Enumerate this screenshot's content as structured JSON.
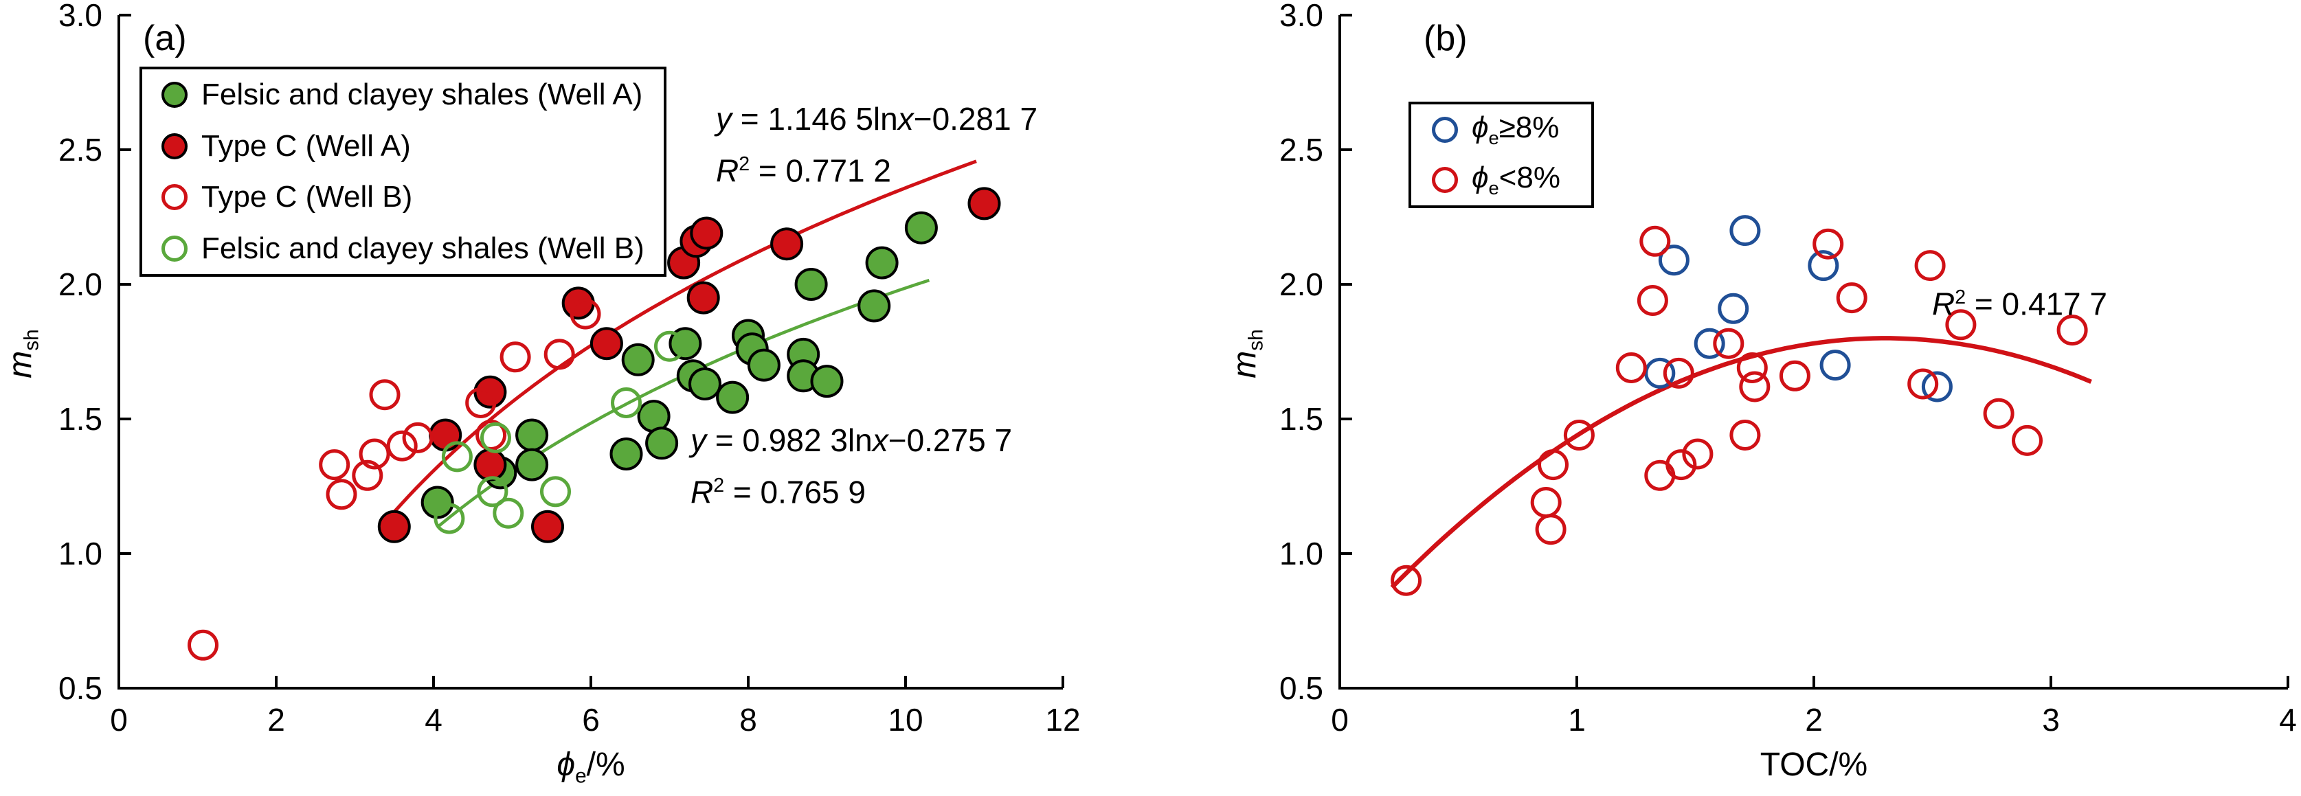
{
  "chart_data": [
    {
      "type": "scatter",
      "panel_label": "(a)",
      "xlabel": {
        "sym": "ϕ",
        "sub": "e",
        "rest": "/%"
      },
      "ylabel": {
        "sym": "m",
        "sub": "sh"
      },
      "xlim": [
        0,
        12
      ],
      "ylim": [
        0.5,
        3.0
      ],
      "xticks": [
        "0",
        "2",
        "4",
        "6",
        "8",
        "10",
        "12"
      ],
      "yticks": [
        "0.5",
        "1.0",
        "1.5",
        "2.0",
        "2.5",
        "3.0"
      ],
      "grid": false,
      "legend_position": "upper-left",
      "legend": [
        {
          "label": "Felsic and clayey shales (Well A)",
          "marker": "filled",
          "color": "#5AA83C"
        },
        {
          "label": "Type C (Well A)",
          "marker": "filled",
          "color": "#D01116"
        },
        {
          "label": "Type C (Well B)",
          "marker": "open",
          "color": "#D01116"
        },
        {
          "label": "Felsic and clayey shales (Well B)",
          "marker": "open",
          "color": "#5AA83C"
        }
      ],
      "series": [
        {
          "name": "Felsic and clayey shales (Well A)",
          "marker": "filled",
          "color": "#5AA83C",
          "points": [
            [
              4.05,
              1.19
            ],
            [
              4.85,
              1.3
            ],
            [
              5.25,
              1.44
            ],
            [
              5.25,
              1.33
            ],
            [
              6.45,
              1.37
            ],
            [
              6.6,
              1.72
            ],
            [
              6.8,
              1.51
            ],
            [
              6.9,
              1.41
            ],
            [
              7.2,
              1.78
            ],
            [
              7.3,
              1.66
            ],
            [
              7.45,
              1.63
            ],
            [
              7.8,
              1.58
            ],
            [
              8.0,
              1.81
            ],
            [
              8.05,
              1.76
            ],
            [
              8.2,
              1.7
            ],
            [
              8.7,
              1.74
            ],
            [
              8.7,
              1.66
            ],
            [
              8.8,
              2.0
            ],
            [
              9.0,
              1.64
            ],
            [
              9.6,
              1.92
            ],
            [
              9.7,
              2.08
            ],
            [
              10.2,
              2.21
            ]
          ]
        },
        {
          "name": "Type C (Well A)",
          "marker": "filled",
          "color": "#D01116",
          "points": [
            [
              3.5,
              1.1
            ],
            [
              4.15,
              1.44
            ],
            [
              4.72,
              1.6
            ],
            [
              4.72,
              1.33
            ],
            [
              5.45,
              1.1
            ],
            [
              5.84,
              1.93
            ],
            [
              6.2,
              1.78
            ],
            [
              7.18,
              2.08
            ],
            [
              7.34,
              2.16
            ],
            [
              7.47,
              2.19
            ],
            [
              7.43,
              1.95
            ],
            [
              8.49,
              2.15
            ],
            [
              11.0,
              2.3
            ]
          ]
        },
        {
          "name": "Type C (Well B)",
          "marker": "open",
          "color": "#D01116",
          "points": [
            [
              1.07,
              0.66
            ],
            [
              2.74,
              1.33
            ],
            [
              2.83,
              1.22
            ],
            [
              3.16,
              1.29
            ],
            [
              3.25,
              1.37
            ],
            [
              3.38,
              1.59
            ],
            [
              3.6,
              1.4
            ],
            [
              3.8,
              1.43
            ],
            [
              4.6,
              1.56
            ],
            [
              4.73,
              1.44
            ],
            [
              5.04,
              1.73
            ],
            [
              5.6,
              1.74
            ],
            [
              5.93,
              1.89
            ]
          ]
        },
        {
          "name": "Felsic and clayey shales (Well B)",
          "marker": "open",
          "color": "#5AA83C",
          "points": [
            [
              4.2,
              1.13
            ],
            [
              4.3,
              1.36
            ],
            [
              4.75,
              1.23
            ],
            [
              4.79,
              1.43
            ],
            [
              4.95,
              1.15
            ],
            [
              5.55,
              1.23
            ],
            [
              6.45,
              1.56
            ],
            [
              7.0,
              1.77
            ]
          ]
        }
      ],
      "trendlines": [
        {
          "type": "log",
          "a": 1.1465,
          "b": -0.2817,
          "x_start": 3.4,
          "x_end": 10.9,
          "color": "#D01116",
          "width": 5,
          "equation": {
            "y": "y",
            "body": " = 1.146 5ln",
            "x": "x",
            "tail": "−0.281 7"
          },
          "r2": {
            "R": "R",
            "sup": "2",
            "tail": " = 0.771 2"
          }
        },
        {
          "type": "log",
          "a": 0.9823,
          "b": -0.2757,
          "x_start": 4.05,
          "x_end": 10.3,
          "color": "#5AA83C",
          "width": 4.5,
          "equation": {
            "y": "y",
            "body": " = 0.982 3ln",
            "x": "x",
            "tail": "−0.275 7"
          },
          "r2": {
            "R": "R",
            "sup": "2",
            "tail": " = 0.765 9"
          }
        }
      ]
    },
    {
      "type": "scatter",
      "panel_label": "(b)",
      "xlabel": {
        "sym": "",
        "sub": "",
        "rest": "TOC/%"
      },
      "ylabel": {
        "sym": "m",
        "sub": "sh"
      },
      "xlim": [
        0,
        4
      ],
      "ylim": [
        0.5,
        3.0
      ],
      "xticks": [
        "0",
        "1",
        "2",
        "3",
        "4"
      ],
      "yticks": [
        "0.5",
        "1.0",
        "1.5",
        "2.0",
        "2.5",
        "3.0"
      ],
      "grid": false,
      "legend_position": "upper-left",
      "legend": [
        {
          "label": {
            "sym": "ϕ",
            "sub": "e",
            "rest": "≥8%"
          },
          "marker": "open",
          "color": "#204F96"
        },
        {
          "label": {
            "sym": "ϕ",
            "sub": "e",
            "rest": "<8%"
          },
          "marker": "open",
          "color": "#D01116"
        }
      ],
      "series": [
        {
          "name": "phi-e >= 8%",
          "marker": "open",
          "color": "#204F96",
          "points": [
            [
              1.35,
              1.67
            ],
            [
              1.41,
              2.09
            ],
            [
              1.56,
              1.78
            ],
            [
              1.66,
              1.91
            ],
            [
              1.71,
              2.2
            ],
            [
              2.04,
              2.07
            ],
            [
              2.09,
              1.7
            ],
            [
              2.52,
              1.62
            ]
          ]
        },
        {
          "name": "phi-e < 8%",
          "marker": "open",
          "color": "#D01116",
          "points": [
            [
              0.28,
              0.9
            ],
            [
              0.87,
              1.19
            ],
            [
              0.89,
              1.09
            ],
            [
              0.9,
              1.33
            ],
            [
              1.01,
              1.44
            ],
            [
              1.23,
              1.69
            ],
            [
              1.32,
              1.94
            ],
            [
              1.33,
              2.16
            ],
            [
              1.35,
              1.29
            ],
            [
              1.43,
              1.67
            ],
            [
              1.44,
              1.33
            ],
            [
              1.51,
              1.37
            ],
            [
              1.64,
              1.78
            ],
            [
              1.71,
              1.44
            ],
            [
              1.74,
              1.69
            ],
            [
              1.75,
              1.62
            ],
            [
              1.92,
              1.66
            ],
            [
              2.06,
              2.15
            ],
            [
              2.16,
              1.95
            ],
            [
              2.46,
              1.63
            ],
            [
              2.49,
              2.07
            ],
            [
              2.62,
              1.85
            ],
            [
              2.78,
              1.52
            ],
            [
              2.9,
              1.42
            ],
            [
              3.09,
              1.83
            ]
          ]
        }
      ],
      "trendlines": [
        {
          "type": "quad",
          "a": -0.214,
          "h": 2.3,
          "k": 1.8,
          "x_start": 0.22,
          "x_end": 3.17,
          "color": "#D01116",
          "width": 6.5,
          "r2": {
            "R": "R",
            "sup": "2",
            "tail": " = 0.417 7"
          }
        }
      ]
    }
  ]
}
